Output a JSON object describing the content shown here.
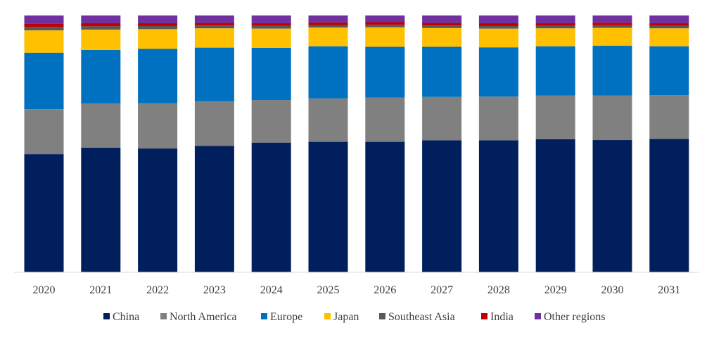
{
  "chart_data": {
    "type": "bar",
    "stacked": "percent",
    "title": "",
    "xlabel": "",
    "ylabel": "",
    "ylim": [
      0,
      100
    ],
    "grid": false,
    "legend_position": "bottom",
    "categories": [
      "2020",
      "2021",
      "2022",
      "2023",
      "2024",
      "2025",
      "2026",
      "2027",
      "2028",
      "2029",
      "2030",
      "2031"
    ],
    "series": [
      {
        "name": "China",
        "color": "#001f5c",
        "values": [
          46.0,
          48.5,
          48.2,
          49.2,
          50.5,
          50.8,
          50.8,
          51.4,
          51.4,
          51.8,
          51.5,
          51.9
        ]
      },
      {
        "name": "North America",
        "color": "#808080",
        "values": [
          17.5,
          17.2,
          17.6,
          17.4,
          16.6,
          16.9,
          17.2,
          16.9,
          17.0,
          17.1,
          17.4,
          17.1
        ]
      },
      {
        "name": "Europe",
        "color": "#0070c0",
        "values": [
          22.0,
          20.9,
          21.2,
          20.9,
          20.3,
          20.3,
          19.8,
          19.5,
          19.2,
          19.1,
          19.3,
          19.0
        ]
      },
      {
        "name": "Japan",
        "color": "#ffc000",
        "values": [
          8.7,
          7.9,
          7.7,
          7.5,
          7.5,
          7.3,
          7.6,
          7.3,
          7.3,
          7.0,
          7.0,
          7.0
        ]
      },
      {
        "name": "Southeast Asia",
        "color": "#595959",
        "values": [
          1.4,
          1.3,
          1.2,
          1.1,
          1.1,
          1.0,
          1.0,
          1.0,
          1.0,
          1.0,
          1.0,
          1.0
        ]
      },
      {
        "name": "India",
        "color": "#c00000",
        "values": [
          1.3,
          1.2,
          1.1,
          1.0,
          1.0,
          1.0,
          1.0,
          1.0,
          1.1,
          1.0,
          1.0,
          1.0
        ]
      },
      {
        "name": "Other regions",
        "color": "#7030a0",
        "values": [
          3.1,
          3.0,
          3.0,
          2.9,
          3.0,
          2.7,
          2.6,
          2.9,
          3.0,
          3.0,
          2.8,
          3.0
        ]
      }
    ]
  }
}
